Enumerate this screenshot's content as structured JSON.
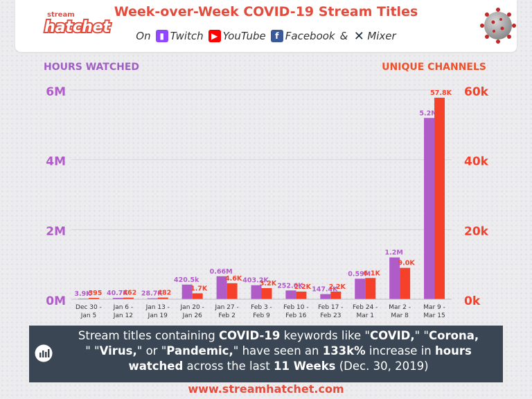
{
  "header": {
    "logo_top": "stream",
    "logo_main": "hatchet",
    "title": "Week-over-Week COVID-19 Stream Titles",
    "on": "On",
    "platforms": [
      "Twitch",
      "YouTube",
      "Facebook",
      "Mixer"
    ],
    "amp": "&"
  },
  "chart_data": {
    "type": "bar",
    "left_axis_label": "HOURS WATCHED",
    "right_axis_label": "UNIQUE CHANNELS",
    "left_ticks": [
      "6M",
      "4M",
      "2M",
      "0M"
    ],
    "right_ticks": [
      "60k",
      "40k",
      "20k",
      "0k"
    ],
    "left_ylim": [
      0,
      6000000
    ],
    "right_ylim": [
      0,
      60000
    ],
    "categories": [
      [
        "Dec 30 -",
        "Jan 5"
      ],
      [
        "Jan 6 -",
        "Jan 12"
      ],
      [
        "Jan 13 -",
        "Jan 19"
      ],
      [
        "Jan 20 -",
        "Jan 26"
      ],
      [
        "Jan 27 -",
        "Feb 2"
      ],
      [
        "Feb 3 -",
        "Feb 9"
      ],
      [
        "Feb 10 -",
        "Feb 16"
      ],
      [
        "Feb 17 -",
        "Feb 23"
      ],
      [
        "Feb 24 -",
        "Mar 1"
      ],
      [
        "Mar 2 -",
        "Mar 8"
      ],
      [
        "Mar 9 -",
        "Mar 15"
      ]
    ],
    "series": [
      {
        "name": "HOURS WATCHED",
        "color": "#b05cc8",
        "values": [
          3900,
          40700,
          28700,
          420500,
          660000,
          403200,
          252600,
          147400,
          590000,
          1200000,
          5200000
        ],
        "labels": [
          "3.9K",
          "40.7K",
          "28.7K",
          "420.5k",
          "0.66M",
          "403.2K",
          "252.6K",
          "147.4K",
          "0.59M",
          "1.2M",
          "5.2M"
        ]
      },
      {
        "name": "UNIQUE CHANNELS",
        "color": "#f5412a",
        "values": [
          395,
          462,
          482,
          1700,
          4600,
          3200,
          2200,
          2200,
          6100,
          9000,
          57800
        ],
        "labels": [
          "395",
          "462",
          "482",
          "1.7K",
          "4.6K",
          "3.2K",
          "2.2K",
          "2.2K",
          "6.1K",
          "9.0K",
          "57.8K"
        ]
      }
    ],
    "grid": true
  },
  "footer": {
    "t1": "Stream titles containing ",
    "t2": "COVID-19",
    "t3": " keywords like \"",
    "t4": "COVID,",
    "t5": "\" \"",
    "t6": "Corona,",
    "t7": "\" \"",
    "t8": "Virus,",
    "t9": "\" or \"",
    "t10": "Pandemic,",
    "t11": "\" have seen an ",
    "t12": "133k%",
    "t13": " increase in ",
    "t14": "hours watched",
    "t15": " across the last ",
    "t16": "11 Weeks",
    "t17": " (Dec. 30, 2019)"
  },
  "url": "www.streamhatchet.com"
}
